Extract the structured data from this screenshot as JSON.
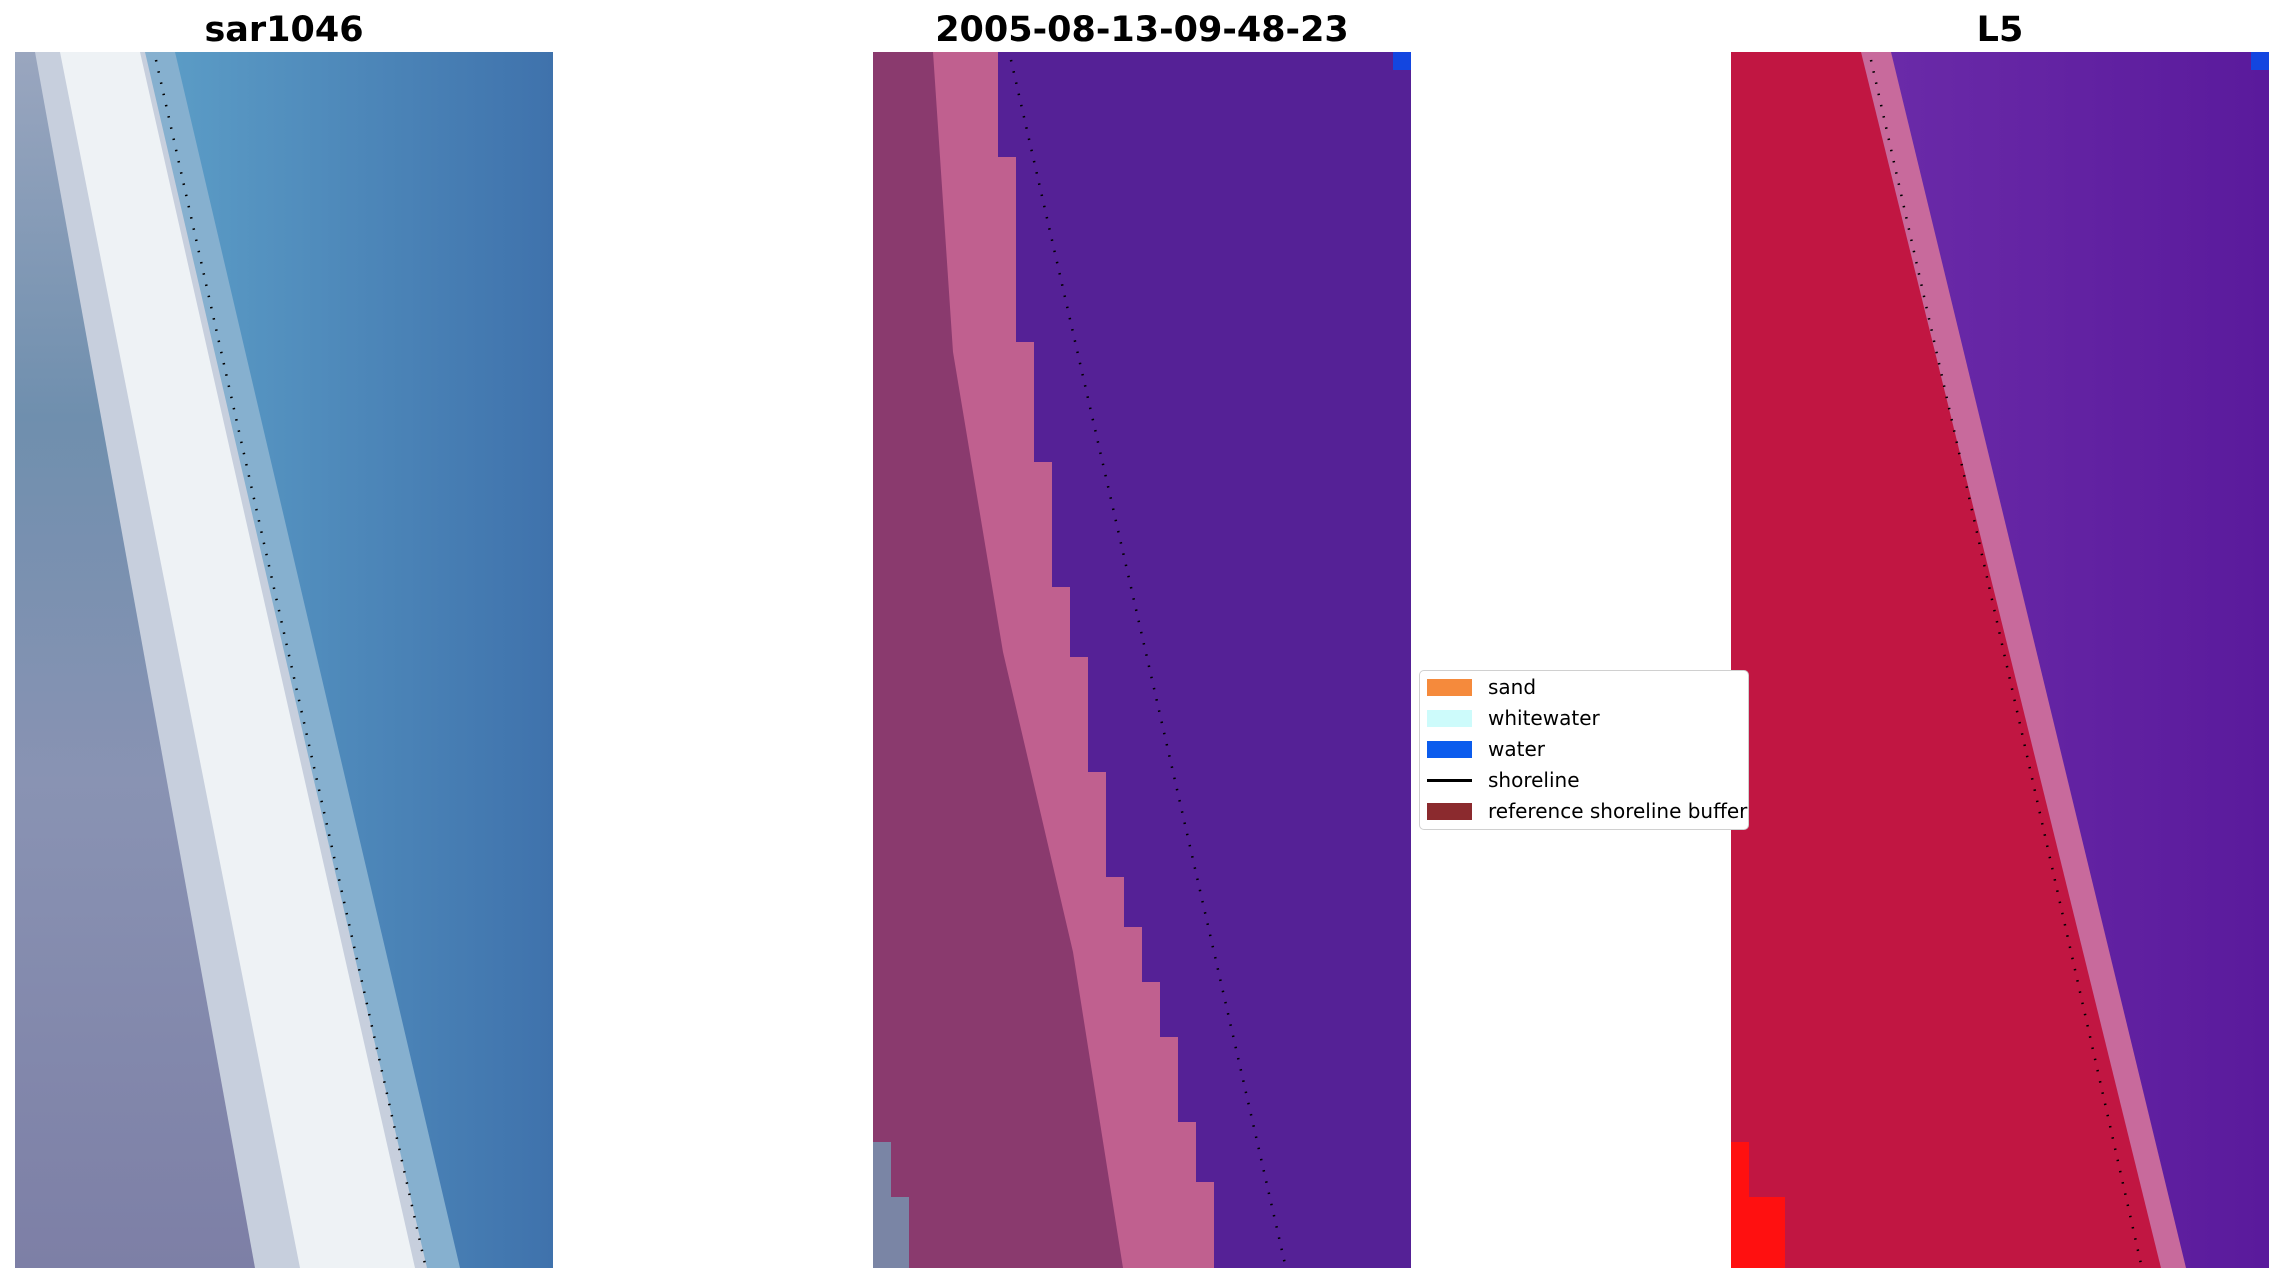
{
  "titles": {
    "panel_1": "sar1046",
    "panel_2": "2005-08-13-09-48-23",
    "panel_3": "L5"
  },
  "legend": {
    "items": [
      {
        "label": "sand",
        "color": "#f58a3c",
        "kind": "patch"
      },
      {
        "label": "whitewater",
        "color": "#cdfbfb",
        "kind": "patch"
      },
      {
        "label": "water",
        "color": "#0b5ced",
        "kind": "patch"
      },
      {
        "label": "shoreline",
        "color": "#000000",
        "kind": "line"
      },
      {
        "label": "reference shoreline buffer",
        "color": "#8b2a2e",
        "kind": "patch"
      }
    ]
  },
  "colors": {
    "rgb_land": "#7e8aa8",
    "rgb_whitewater": "#e9edf1",
    "rgb_sea": "#4b84b8",
    "classified_land": "#8a3a6e",
    "classified_beach": "#c0608f",
    "classified_sea": "#552196",
    "swir_land": "#c11642",
    "swir_beach": "#c86a9c",
    "swir_sea": "#5c1ea0",
    "water_pixel": "#1346e0",
    "shoreline_dots": "#000000"
  }
}
